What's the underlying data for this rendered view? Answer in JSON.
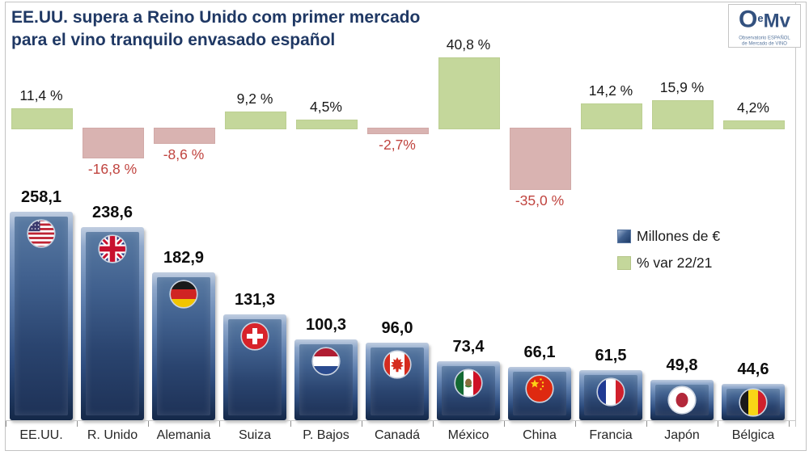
{
  "title": {
    "line1": "EE.UU. supera a Reino Unido com primer mercado",
    "line2": "para el vino tranquilo envasado español"
  },
  "logo": {
    "brand_o": "O",
    "brand_e": "e",
    "brand_mv": "Mv",
    "sub1": "Observatorio ESPAÑOL",
    "sub2": "de Mercado de VINO"
  },
  "legend": {
    "items": [
      {
        "label": "Millones de €",
        "swatch": "blue"
      },
      {
        "label": "% var 22/21",
        "swatch": "green"
      }
    ]
  },
  "chart_data": {
    "type": "bar",
    "title": "EE.UU. supera a Reino Unido com primer mercado para el vino tranquilo envasado español",
    "categories": [
      "EE.UU.",
      "R. Unido",
      "Alemania",
      "Suiza",
      "P. Bajos",
      "Canadá",
      "México",
      "China",
      "Francia",
      "Japón",
      "Bélgica"
    ],
    "series": [
      {
        "name": "Millones de €",
        "type": "column",
        "values": [
          258.1,
          238.6,
          182.9,
          131.3,
          100.3,
          96.0,
          73.4,
          66.1,
          61.5,
          49.8,
          44.6
        ],
        "labels": [
          "258,1",
          "238,6",
          "182,9",
          "131,3",
          "100,3",
          "96,0",
          "73,4",
          "66,1",
          "61,5",
          "49,8",
          "44,6"
        ],
        "color": "#2c4a7a"
      },
      {
        "name": "% var 22/21",
        "type": "column",
        "values": [
          11.4,
          -16.8,
          -8.6,
          9.2,
          4.5,
          -2.7,
          40.8,
          -35.0,
          14.2,
          15.9,
          4.2
        ],
        "labels": [
          "11,4 %",
          "-16,8 %",
          "-8,6 %",
          "9,2 %",
          "4,5%",
          "-2,7%",
          "40,8 %",
          "-35,0 %",
          "14,2 %",
          "15,9 %",
          "4,2%"
        ],
        "color_positive": "#c4d79b",
        "color_negative": "#d9b3b1"
      }
    ],
    "flags": [
      "us",
      "gb",
      "de",
      "ch",
      "nl",
      "ca",
      "mx",
      "cn",
      "fr",
      "jp",
      "be"
    ],
    "legend_position": "middle-right",
    "grid": false,
    "colors": {
      "title_navy": "#1f3864",
      "positive_label": "#1a1a1a",
      "negative_label": "#c0443f",
      "bar_blue_dark": "#1d3154",
      "bar_blue_light": "#9db3d2"
    }
  }
}
